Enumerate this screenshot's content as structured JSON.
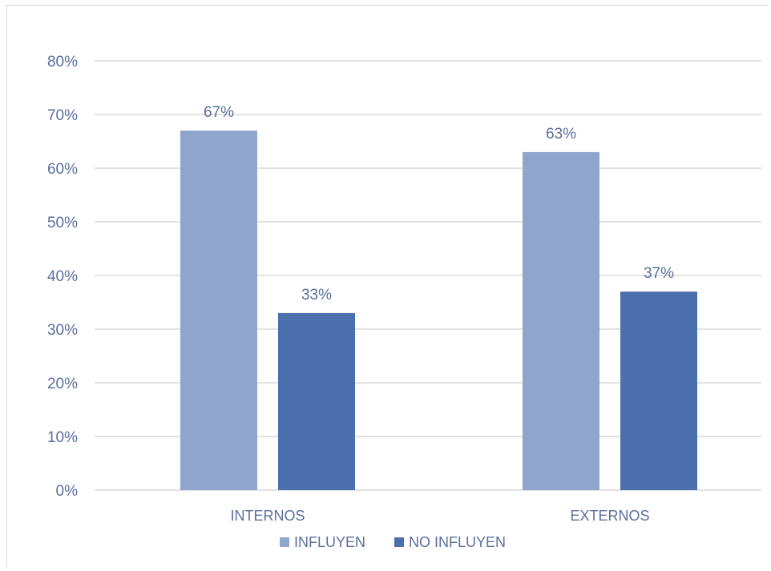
{
  "chart_data": {
    "type": "bar",
    "title": "",
    "xlabel": "",
    "ylabel": "",
    "categories": [
      "INTERNOS",
      "EXTERNOS"
    ],
    "series": [
      {
        "name": "INFLUYEN",
        "values": [
          67,
          63
        ],
        "labels": [
          "67%",
          "63%"
        ],
        "color": "#8fa5cc"
      },
      {
        "name": "NO INFLUYEN",
        "values": [
          33,
          37
        ],
        "labels": [
          "33%",
          "37%"
        ],
        "color": "#4c6fae"
      }
    ],
    "ylim": [
      0,
      80
    ],
    "yticks": [
      {
        "value": 0,
        "label": "0%"
      },
      {
        "value": 10,
        "label": "10%"
      },
      {
        "value": 20,
        "label": "20%"
      },
      {
        "value": 30,
        "label": "30%"
      },
      {
        "value": 40,
        "label": "40%"
      },
      {
        "value": 50,
        "label": "50%"
      },
      {
        "value": 60,
        "label": "60%"
      },
      {
        "value": 70,
        "label": "70%"
      },
      {
        "value": 80,
        "label": "80%"
      }
    ],
    "grid": true,
    "legend_position": "bottom",
    "gridline_color": "#d9d9d9",
    "text_color": "#5b6f9e"
  }
}
